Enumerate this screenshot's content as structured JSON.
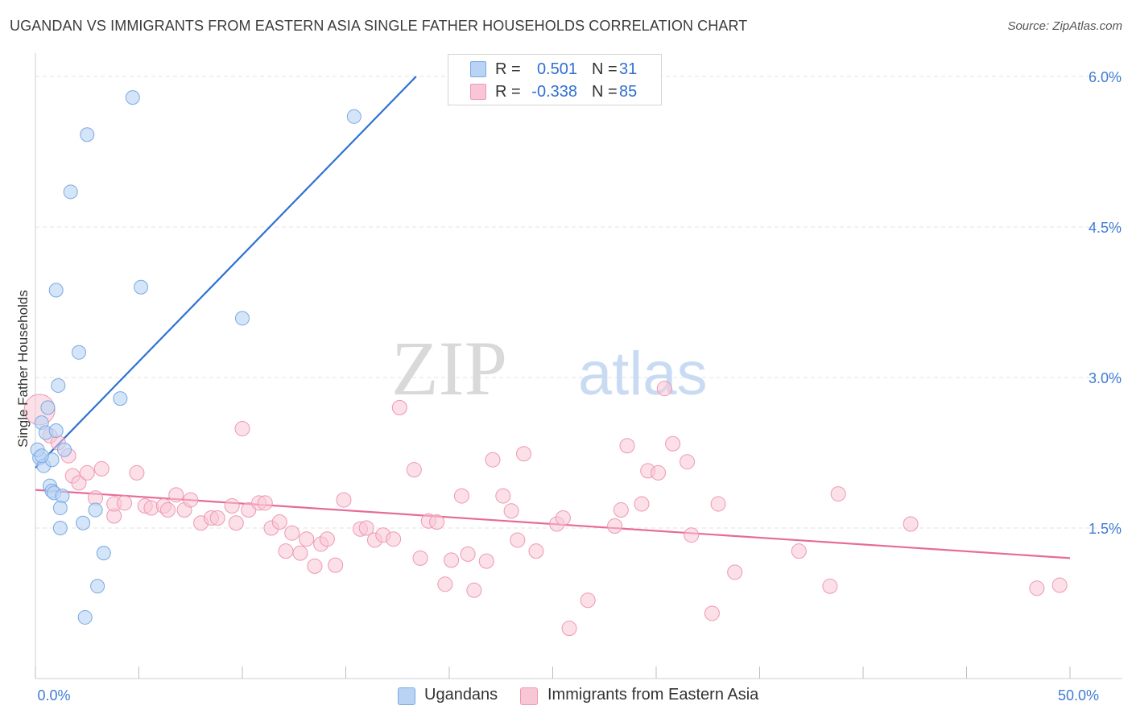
{
  "header": {
    "title": "UGANDAN VS IMMIGRANTS FROM EASTERN ASIA SINGLE FATHER HOUSEHOLDS CORRELATION CHART",
    "source": "Source: ZipAtlas.com"
  },
  "legend_top": {
    "rows": [
      {
        "r_label": "R =",
        "r_value": "0.501",
        "n_label": "N =",
        "n_value": "31"
      },
      {
        "r_label": "R =",
        "r_value": "-0.338",
        "n_label": "N =",
        "n_value": "85"
      }
    ]
  },
  "legend_bottom": {
    "items": [
      {
        "label": "Ugandans"
      },
      {
        "label": "Immigrants from Eastern Asia"
      }
    ]
  },
  "watermark": {
    "part1": "ZIP",
    "part2": "atlas"
  },
  "colors": {
    "ugandan_fill": "#b9d3f5",
    "ugandan_stroke": "#7aa9e0",
    "ugandan_line": "#2f72d0",
    "asia_fill": "#f9c6d6",
    "asia_stroke": "#ee97b4",
    "asia_line": "#e76b98",
    "axis_label": "#3e7bd4",
    "grid": "#e3e3e3"
  },
  "chart_data": {
    "type": "scatter",
    "title": "UGANDAN VS IMMIGRANTS FROM EASTERN ASIA SINGLE FATHER HOUSEHOLDS CORRELATION CHART",
    "xlabel": "",
    "ylabel": "Single Father Households",
    "xlim": [
      0,
      50
    ],
    "ylim": [
      0,
      6.2
    ],
    "x_tick_labels": [
      {
        "value": 0,
        "label": "0.0%"
      },
      {
        "value": 50,
        "label": "50.0%"
      }
    ],
    "y_ticks": [
      {
        "value": 1.5,
        "label": "1.5%"
      },
      {
        "value": 3.0,
        "label": "3.0%"
      },
      {
        "value": 4.5,
        "label": "4.5%"
      },
      {
        "value": 6.0,
        "label": "6.0%"
      }
    ],
    "x_minor_ticks": [
      0,
      5,
      10,
      15,
      20,
      25,
      30,
      35,
      40,
      45,
      50
    ],
    "series": [
      {
        "name": "Ugandans",
        "r": 0.501,
        "n": 31,
        "trend": {
          "x": [
            0,
            18.4
          ],
          "y": [
            2.1,
            6.0
          ]
        },
        "points": [
          {
            "x": 0.2,
            "y": 2.2
          },
          {
            "x": 0.3,
            "y": 2.55
          },
          {
            "x": 0.5,
            "y": 2.45
          },
          {
            "x": 0.4,
            "y": 2.12
          },
          {
            "x": 0.6,
            "y": 2.7
          },
          {
            "x": 0.1,
            "y": 2.28
          },
          {
            "x": 0.8,
            "y": 2.18
          },
          {
            "x": 1.0,
            "y": 2.47
          },
          {
            "x": 1.4,
            "y": 2.28
          },
          {
            "x": 0.7,
            "y": 1.92
          },
          {
            "x": 0.8,
            "y": 1.87
          },
          {
            "x": 0.9,
            "y": 1.85
          },
          {
            "x": 1.3,
            "y": 1.82
          },
          {
            "x": 1.2,
            "y": 1.7
          },
          {
            "x": 1.2,
            "y": 1.5
          },
          {
            "x": 2.3,
            "y": 1.55
          },
          {
            "x": 2.9,
            "y": 1.68
          },
          {
            "x": 3.3,
            "y": 1.25
          },
          {
            "x": 3.0,
            "y": 0.92
          },
          {
            "x": 2.4,
            "y": 0.61
          },
          {
            "x": 1.0,
            "y": 3.87
          },
          {
            "x": 1.1,
            "y": 2.92
          },
          {
            "x": 2.1,
            "y": 3.25
          },
          {
            "x": 4.1,
            "y": 2.79
          },
          {
            "x": 5.1,
            "y": 3.9
          },
          {
            "x": 1.7,
            "y": 4.85
          },
          {
            "x": 2.5,
            "y": 5.42
          },
          {
            "x": 4.7,
            "y": 5.79
          },
          {
            "x": 10.0,
            "y": 3.59
          },
          {
            "x": 15.4,
            "y": 5.6
          },
          {
            "x": 0.3,
            "y": 2.22
          }
        ]
      },
      {
        "name": "Immigrants from Eastern Asia",
        "r": -0.338,
        "n": 85,
        "trend": {
          "x": [
            0,
            50
          ],
          "y": [
            1.88,
            1.2
          ]
        },
        "points": [
          {
            "x": 0.2,
            "y": 2.68
          },
          {
            "x": 0.7,
            "y": 2.42
          },
          {
            "x": 1.1,
            "y": 2.35
          },
          {
            "x": 1.6,
            "y": 2.22
          },
          {
            "x": 1.8,
            "y": 2.02
          },
          {
            "x": 2.1,
            "y": 1.95
          },
          {
            "x": 2.5,
            "y": 2.05
          },
          {
            "x": 3.2,
            "y": 2.09
          },
          {
            "x": 2.9,
            "y": 1.8
          },
          {
            "x": 3.8,
            "y": 1.62
          },
          {
            "x": 3.8,
            "y": 1.74
          },
          {
            "x": 4.3,
            "y": 1.75
          },
          {
            "x": 4.9,
            "y": 2.05
          },
          {
            "x": 5.3,
            "y": 1.72
          },
          {
            "x": 5.6,
            "y": 1.7
          },
          {
            "x": 6.2,
            "y": 1.72
          },
          {
            "x": 6.4,
            "y": 1.68
          },
          {
            "x": 6.8,
            "y": 1.83
          },
          {
            "x": 7.2,
            "y": 1.68
          },
          {
            "x": 7.5,
            "y": 1.78
          },
          {
            "x": 8.0,
            "y": 1.55
          },
          {
            "x": 8.5,
            "y": 1.6
          },
          {
            "x": 8.8,
            "y": 1.6
          },
          {
            "x": 9.5,
            "y": 1.72
          },
          {
            "x": 9.7,
            "y": 1.55
          },
          {
            "x": 10.0,
            "y": 2.49
          },
          {
            "x": 10.3,
            "y": 1.68
          },
          {
            "x": 10.8,
            "y": 1.75
          },
          {
            "x": 11.1,
            "y": 1.75
          },
          {
            "x": 11.4,
            "y": 1.5
          },
          {
            "x": 11.8,
            "y": 1.56
          },
          {
            "x": 12.1,
            "y": 1.27
          },
          {
            "x": 12.4,
            "y": 1.45
          },
          {
            "x": 12.8,
            "y": 1.25
          },
          {
            "x": 13.1,
            "y": 1.39
          },
          {
            "x": 13.5,
            "y": 1.12
          },
          {
            "x": 13.8,
            "y": 1.34
          },
          {
            "x": 14.1,
            "y": 1.39
          },
          {
            "x": 14.5,
            "y": 1.13
          },
          {
            "x": 14.9,
            "y": 1.78
          },
          {
            "x": 15.7,
            "y": 1.49
          },
          {
            "x": 16.0,
            "y": 1.5
          },
          {
            "x": 16.4,
            "y": 1.38
          },
          {
            "x": 16.8,
            "y": 1.43
          },
          {
            "x": 17.3,
            "y": 1.39
          },
          {
            "x": 17.6,
            "y": 2.7
          },
          {
            "x": 18.3,
            "y": 2.08
          },
          {
            "x": 18.6,
            "y": 1.2
          },
          {
            "x": 19.0,
            "y": 1.57
          },
          {
            "x": 19.4,
            "y": 1.56
          },
          {
            "x": 19.8,
            "y": 0.94
          },
          {
            "x": 20.1,
            "y": 1.18
          },
          {
            "x": 20.6,
            "y": 1.82
          },
          {
            "x": 20.9,
            "y": 1.24
          },
          {
            "x": 21.2,
            "y": 0.88
          },
          {
            "x": 21.8,
            "y": 1.17
          },
          {
            "x": 22.1,
            "y": 2.18
          },
          {
            "x": 22.6,
            "y": 1.82
          },
          {
            "x": 23.0,
            "y": 1.67
          },
          {
            "x": 23.3,
            "y": 1.38
          },
          {
            "x": 23.6,
            "y": 2.24
          },
          {
            "x": 24.2,
            "y": 1.27
          },
          {
            "x": 25.2,
            "y": 1.54
          },
          {
            "x": 25.5,
            "y": 1.6
          },
          {
            "x": 25.8,
            "y": 0.5
          },
          {
            "x": 26.7,
            "y": 0.78
          },
          {
            "x": 28.0,
            "y": 1.52
          },
          {
            "x": 28.3,
            "y": 1.68
          },
          {
            "x": 28.6,
            "y": 2.32
          },
          {
            "x": 29.3,
            "y": 1.74
          },
          {
            "x": 29.6,
            "y": 2.07
          },
          {
            "x": 30.1,
            "y": 2.05
          },
          {
            "x": 30.4,
            "y": 2.89
          },
          {
            "x": 30.8,
            "y": 2.34
          },
          {
            "x": 31.5,
            "y": 2.16
          },
          {
            "x": 31.7,
            "y": 1.43
          },
          {
            "x": 32.7,
            "y": 0.65
          },
          {
            "x": 33.0,
            "y": 1.74
          },
          {
            "x": 33.8,
            "y": 1.06
          },
          {
            "x": 36.9,
            "y": 1.27
          },
          {
            "x": 38.4,
            "y": 0.92
          },
          {
            "x": 38.8,
            "y": 1.84
          },
          {
            "x": 42.3,
            "y": 1.54
          },
          {
            "x": 48.4,
            "y": 0.9
          },
          {
            "x": 49.5,
            "y": 0.93
          }
        ]
      }
    ]
  }
}
